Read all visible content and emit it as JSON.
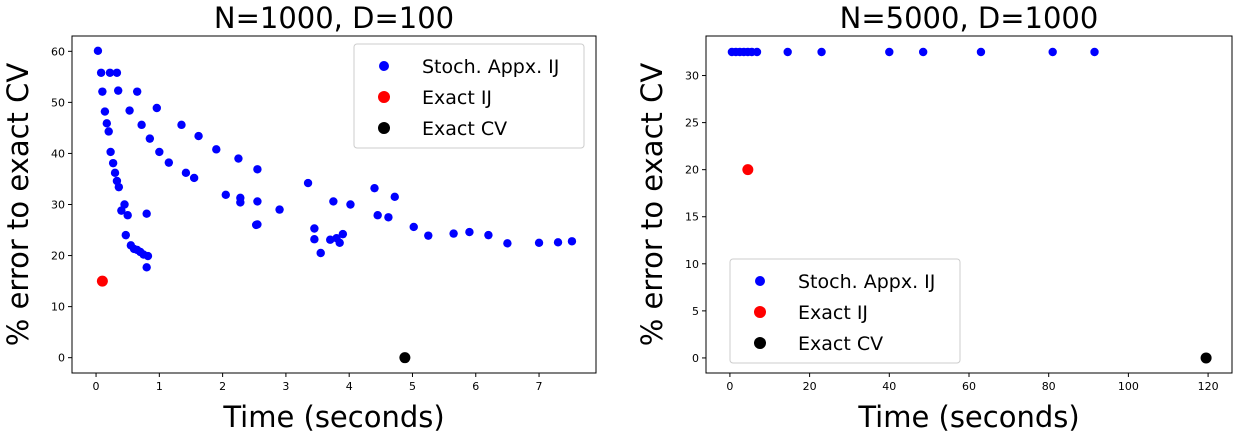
{
  "chart_data": [
    {
      "type": "scatter",
      "title": "N=1000, D=100",
      "xlabel": "Time (seconds)",
      "ylabel": "% error to exact CV",
      "xlim": [
        -0.38,
        7.9
      ],
      "ylim": [
        -3,
        63
      ],
      "xticks": [
        0,
        1,
        2,
        3,
        4,
        5,
        6,
        7
      ],
      "yticks": [
        0,
        10,
        20,
        30,
        40,
        50,
        60
      ],
      "grid": false,
      "legend_position": "top-right",
      "series": [
        {
          "name": "Stoch. Appx. IJ",
          "color": "#0000ff",
          "points": [
            [
              0.03,
              60.1
            ],
            [
              0.08,
              55.8
            ],
            [
              0.1,
              52.1
            ],
            [
              0.14,
              48.2
            ],
            [
              0.17,
              45.9
            ],
            [
              0.2,
              44.3
            ],
            [
              0.23,
              40.3
            ],
            [
              0.27,
              38.1
            ],
            [
              0.3,
              36.2
            ],
            [
              0.33,
              34.6
            ],
            [
              0.36,
              33.4
            ],
            [
              0.4,
              28.8
            ],
            [
              0.45,
              30.0
            ],
            [
              0.47,
              24.0
            ],
            [
              0.5,
              27.9
            ],
            [
              0.55,
              22.0
            ],
            [
              0.6,
              21.3
            ],
            [
              0.65,
              21.1
            ],
            [
              0.7,
              20.7
            ],
            [
              0.75,
              20.2
            ],
            [
              0.8,
              17.7
            ],
            [
              0.82,
              19.9
            ],
            [
              0.22,
              55.8
            ],
            [
              0.33,
              55.8
            ],
            [
              0.35,
              52.3
            ],
            [
              0.53,
              48.4
            ],
            [
              0.65,
              52.1
            ],
            [
              0.72,
              45.6
            ],
            [
              0.85,
              42.9
            ],
            [
              0.96,
              48.9
            ],
            [
              1.0,
              40.3
            ],
            [
              0.8,
              28.2
            ],
            [
              1.15,
              38.2
            ],
            [
              1.35,
              45.6
            ],
            [
              1.42,
              36.2
            ],
            [
              1.55,
              35.2
            ],
            [
              1.62,
              43.4
            ],
            [
              1.9,
              40.8
            ],
            [
              2.05,
              31.9
            ],
            [
              2.25,
              39.0
            ],
            [
              2.28,
              31.3
            ],
            [
              2.28,
              30.4
            ],
            [
              2.53,
              26.0
            ],
            [
              2.55,
              26.1
            ],
            [
              2.55,
              30.6
            ],
            [
              2.55,
              36.9
            ],
            [
              2.9,
              29.0
            ],
            [
              3.35,
              34.2
            ],
            [
              3.45,
              25.3
            ],
            [
              3.45,
              23.2
            ],
            [
              3.55,
              20.5
            ],
            [
              3.7,
              23.1
            ],
            [
              3.75,
              30.6
            ],
            [
              3.8,
              23.4
            ],
            [
              3.85,
              22.5
            ],
            [
              3.9,
              24.2
            ],
            [
              4.02,
              30.0
            ],
            [
              4.4,
              33.2
            ],
            [
              4.45,
              27.9
            ],
            [
              4.62,
              27.5
            ],
            [
              4.72,
              31.5
            ],
            [
              5.02,
              25.6
            ],
            [
              5.25,
              23.9
            ],
            [
              5.65,
              24.3
            ],
            [
              5.9,
              24.6
            ],
            [
              6.2,
              24.0
            ],
            [
              6.5,
              22.4
            ],
            [
              7.0,
              22.5
            ],
            [
              7.3,
              22.6
            ],
            [
              7.52,
              22.8
            ]
          ]
        },
        {
          "name": "Exact IJ",
          "color": "#ff0000",
          "points": [
            [
              0.1,
              15.0
            ]
          ]
        },
        {
          "name": "Exact CV",
          "color": "#000000",
          "points": [
            [
              4.88,
              0.0
            ]
          ]
        }
      ]
    },
    {
      "type": "scatter",
      "title": "N=5000, D=1000",
      "xlabel": "Time (seconds)",
      "ylabel": "% error to exact CV",
      "xlim": [
        -6,
        126
      ],
      "ylim": [
        -1.6,
        34.2
      ],
      "xticks": [
        0,
        20,
        40,
        60,
        80,
        100,
        120
      ],
      "yticks": [
        0,
        5,
        10,
        15,
        20,
        25,
        30
      ],
      "grid": false,
      "legend_position": "bottom-left",
      "series": [
        {
          "name": "Stoch. Appx. IJ",
          "color": "#0000ff",
          "points": [
            [
              0.5,
              32.5
            ],
            [
              1.5,
              32.5
            ],
            [
              2.5,
              32.5
            ],
            [
              3.5,
              32.5
            ],
            [
              4.5,
              32.5
            ],
            [
              5.5,
              32.5
            ],
            [
              6.8,
              32.5
            ],
            [
              14.5,
              32.5
            ],
            [
              23.0,
              32.5
            ],
            [
              40.0,
              32.5
            ],
            [
              48.5,
              32.5
            ],
            [
              63.0,
              32.5
            ],
            [
              81.0,
              32.5
            ],
            [
              91.5,
              32.5
            ]
          ]
        },
        {
          "name": "Exact IJ",
          "color": "#ff0000",
          "points": [
            [
              4.5,
              20.0
            ]
          ]
        },
        {
          "name": "Exact CV",
          "color": "#000000",
          "points": [
            [
              119.5,
              0.0
            ]
          ]
        }
      ]
    }
  ]
}
